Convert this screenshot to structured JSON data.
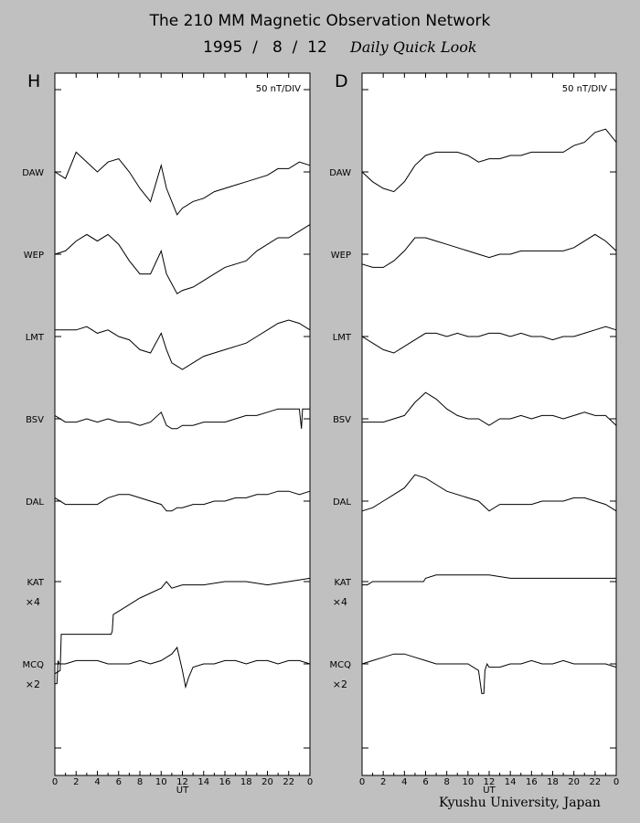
{
  "header": {
    "title": "The 210 MM Magnetic Observation Network",
    "date": "1995  /   8  /  12",
    "subtitle": "Daily Quick Look"
  },
  "footer": {
    "credit": "Kyushu University, Japan"
  },
  "chart_data": [
    {
      "type": "line",
      "panel_label": "H",
      "scale_label": "50 nT/DIV",
      "xlabel": "UT",
      "x_ticks": [
        "0",
        "2",
        "4",
        "6",
        "8",
        "10",
        "12",
        "14",
        "16",
        "18",
        "20",
        "22",
        "0"
      ],
      "xlim": [
        0,
        24
      ],
      "stations": [
        {
          "name": "DAW",
          "multiplier": "",
          "x": [
            0,
            1,
            2,
            3,
            4,
            5,
            6,
            7,
            8,
            9,
            10,
            10.5,
            11,
            11.5,
            12,
            13,
            14,
            15,
            16,
            17,
            18,
            19,
            20,
            21,
            22,
            23,
            24
          ],
          "values": [
            0,
            -0.2,
            0.6,
            0.3,
            0,
            0.3,
            0.4,
            0,
            -0.5,
            -0.9,
            0.2,
            -0.5,
            -0.9,
            -1.3,
            -1.1,
            -0.9,
            -0.8,
            -0.6,
            -0.5,
            -0.4,
            -0.3,
            -0.2,
            -0.1,
            0.1,
            0.1,
            0.3,
            0.2
          ]
        },
        {
          "name": "WEP",
          "multiplier": "",
          "x": [
            0,
            1,
            2,
            3,
            4,
            5,
            6,
            7,
            8,
            9,
            10,
            10.5,
            11,
            11.5,
            12,
            13,
            14,
            15,
            16,
            17,
            18,
            19,
            20,
            21,
            22,
            23,
            24
          ],
          "values": [
            0,
            0.1,
            0.4,
            0.6,
            0.4,
            0.6,
            0.3,
            -0.2,
            -0.6,
            -0.6,
            0.1,
            -0.6,
            -0.9,
            -1.2,
            -1.1,
            -1.0,
            -0.8,
            -0.6,
            -0.4,
            -0.3,
            -0.2,
            0.1,
            0.3,
            0.5,
            0.5,
            0.7,
            0.9
          ]
        },
        {
          "name": "LMT",
          "multiplier": "",
          "x": [
            0,
            1,
            2,
            3,
            4,
            5,
            6,
            7,
            8,
            9,
            10,
            10.5,
            11,
            11.5,
            12,
            13,
            14,
            15,
            16,
            17,
            18,
            19,
            20,
            21,
            22,
            23,
            24
          ],
          "values": [
            0.2,
            0.2,
            0.2,
            0.3,
            0.1,
            0.2,
            0,
            -0.1,
            -0.4,
            -0.5,
            0.1,
            -0.4,
            -0.8,
            -0.9,
            -1.0,
            -0.8,
            -0.6,
            -0.5,
            -0.4,
            -0.3,
            -0.2,
            0,
            0.2,
            0.4,
            0.5,
            0.4,
            0.2
          ]
        },
        {
          "name": "BSV",
          "multiplier": "",
          "x": [
            0,
            1,
            2,
            3,
            4,
            5,
            6,
            7,
            8,
            9,
            10,
            10.5,
            11,
            11.5,
            12,
            13,
            14,
            15,
            16,
            17,
            18,
            19,
            20,
            21,
            22,
            23,
            23.2,
            23.3,
            24
          ],
          "values": [
            0.1,
            -0.1,
            -0.1,
            0,
            -0.1,
            0,
            -0.1,
            -0.1,
            -0.2,
            -0.1,
            0.2,
            -0.2,
            -0.3,
            -0.3,
            -0.2,
            -0.2,
            -0.1,
            -0.1,
            -0.1,
            0,
            0.1,
            0.1,
            0.2,
            0.3,
            0.3,
            0.3,
            -0.3,
            0.3,
            0.3
          ]
        },
        {
          "name": "DAL",
          "multiplier": "",
          "x": [
            0,
            1,
            2,
            3,
            4,
            5,
            6,
            7,
            8,
            9,
            10,
            10.5,
            11,
            11.5,
            12,
            13,
            14,
            15,
            16,
            17,
            18,
            19,
            20,
            21,
            22,
            23,
            24
          ],
          "values": [
            0.1,
            -0.1,
            -0.1,
            -0.1,
            -0.1,
            0.1,
            0.2,
            0.2,
            0.1,
            0,
            -0.1,
            -0.3,
            -0.3,
            -0.2,
            -0.2,
            -0.1,
            -0.1,
            0,
            0,
            0.1,
            0.1,
            0.2,
            0.2,
            0.3,
            0.3,
            0.2,
            0.3
          ]
        },
        {
          "name": "KAT",
          "multiplier": "×4",
          "x": [
            0,
            0.5,
            0.6,
            0.7,
            5.3,
            5.4,
            5.5,
            6,
            8,
            10,
            10.5,
            11,
            12,
            14,
            16,
            18,
            20,
            22,
            24
          ],
          "values": [
            -2.8,
            -2.7,
            -1.6,
            -1.6,
            -1.6,
            -1.5,
            -1.0,
            -0.9,
            -0.5,
            -0.2,
            0,
            -0.2,
            -0.1,
            -0.1,
            0,
            0,
            -0.1,
            0,
            0.1
          ]
        },
        {
          "name": "MCQ",
          "multiplier": "×2",
          "x": [
            0,
            0.2,
            0.3,
            0.4,
            0.5,
            1,
            2,
            3,
            4,
            5,
            6,
            7,
            8,
            9,
            10,
            10.5,
            11,
            11.5,
            12,
            12.3,
            12.6,
            13,
            14,
            15,
            16,
            17,
            18,
            19,
            20,
            21,
            22,
            23,
            24
          ],
          "values": [
            -0.6,
            -0.6,
            0.1,
            0,
            0,
            0,
            0.1,
            0.1,
            0.1,
            0,
            0,
            0,
            0.1,
            0,
            0.1,
            0.2,
            0.3,
            0.5,
            -0.2,
            -0.7,
            -0.4,
            -0.1,
            0,
            0,
            0.1,
            0.1,
            0,
            0.1,
            0.1,
            0,
            0.1,
            0.1,
            0
          ]
        }
      ]
    },
    {
      "type": "line",
      "panel_label": "D",
      "scale_label": "50 nT/DIV",
      "xlabel": "UT",
      "x_ticks": [
        "0",
        "2",
        "4",
        "6",
        "8",
        "10",
        "12",
        "14",
        "16",
        "18",
        "20",
        "22",
        "0"
      ],
      "xlim": [
        0,
        24
      ],
      "stations": [
        {
          "name": "DAW",
          "multiplier": "",
          "x": [
            0,
            1,
            2,
            3,
            4,
            5,
            6,
            7,
            8,
            9,
            10,
            11,
            12,
            13,
            14,
            15,
            16,
            17,
            18,
            19,
            20,
            21,
            22,
            23,
            24
          ],
          "values": [
            0,
            -0.3,
            -0.5,
            -0.6,
            -0.3,
            0.2,
            0.5,
            0.6,
            0.6,
            0.6,
            0.5,
            0.3,
            0.4,
            0.4,
            0.5,
            0.5,
            0.6,
            0.6,
            0.6,
            0.6,
            0.8,
            0.9,
            1.2,
            1.3,
            0.9
          ]
        },
        {
          "name": "WEP",
          "multiplier": "",
          "x": [
            0,
            1,
            2,
            3,
            4,
            5,
            6,
            7,
            8,
            9,
            10,
            11,
            12,
            13,
            14,
            15,
            16,
            17,
            18,
            19,
            20,
            21,
            22,
            23,
            24
          ],
          "values": [
            -0.3,
            -0.4,
            -0.4,
            -0.2,
            0.1,
            0.5,
            0.5,
            0.4,
            0.3,
            0.2,
            0.1,
            0,
            -0.1,
            0,
            0,
            0.1,
            0.1,
            0.1,
            0.1,
            0.1,
            0.2,
            0.4,
            0.6,
            0.4,
            0.1
          ]
        },
        {
          "name": "LMT",
          "multiplier": "",
          "x": [
            0,
            1,
            2,
            3,
            4,
            5,
            6,
            7,
            8,
            9,
            10,
            11,
            12,
            13,
            14,
            15,
            16,
            17,
            18,
            19,
            20,
            21,
            22,
            23,
            24
          ],
          "values": [
            0,
            -0.2,
            -0.4,
            -0.5,
            -0.3,
            -0.1,
            0.1,
            0.1,
            0,
            0.1,
            0,
            0,
            0.1,
            0.1,
            0,
            0.1,
            0,
            0,
            -0.1,
            0,
            0,
            0.1,
            0.2,
            0.3,
            0.2
          ]
        },
        {
          "name": "BSV",
          "multiplier": "",
          "x": [
            0,
            1,
            2,
            3,
            4,
            5,
            6,
            7,
            8,
            9,
            10,
            11,
            12,
            13,
            14,
            15,
            16,
            17,
            18,
            19,
            20,
            21,
            22,
            23,
            24
          ],
          "values": [
            -0.1,
            -0.1,
            -0.1,
            0,
            0.1,
            0.5,
            0.8,
            0.6,
            0.3,
            0.1,
            0,
            0,
            -0.2,
            0,
            0,
            0.1,
            0,
            0.1,
            0.1,
            0,
            0.1,
            0.2,
            0.1,
            0.1,
            -0.2
          ]
        },
        {
          "name": "DAL",
          "multiplier": "",
          "x": [
            0,
            1,
            2,
            3,
            4,
            5,
            6,
            7,
            8,
            9,
            10,
            11,
            12,
            13,
            14,
            15,
            16,
            17,
            18,
            19,
            20,
            21,
            22,
            23,
            24
          ],
          "values": [
            -0.3,
            -0.2,
            0,
            0.2,
            0.4,
            0.8,
            0.7,
            0.5,
            0.3,
            0.2,
            0.1,
            0,
            -0.3,
            -0.1,
            -0.1,
            -0.1,
            -0.1,
            0,
            0,
            0,
            0.1,
            0.1,
            0,
            -0.1,
            -0.3
          ]
        },
        {
          "name": "KAT",
          "multiplier": "×4",
          "x": [
            0,
            0.5,
            1,
            2,
            3,
            4,
            5,
            5.8,
            6,
            7,
            8,
            10,
            12,
            14,
            16,
            18,
            20,
            22,
            24
          ],
          "values": [
            -0.1,
            -0.1,
            0,
            0,
            0,
            0,
            0,
            0,
            0.1,
            0.2,
            0.2,
            0.2,
            0.2,
            0.1,
            0.1,
            0.1,
            0.1,
            0.1,
            0.1
          ]
        },
        {
          "name": "MCQ",
          "multiplier": "×2",
          "x": [
            0,
            1,
            2,
            3,
            4,
            5,
            6,
            7,
            8,
            9,
            10,
            11,
            11.3,
            11.5,
            11.6,
            11.8,
            12,
            13,
            14,
            15,
            16,
            17,
            18,
            19,
            20,
            21,
            22,
            23,
            24
          ],
          "values": [
            0,
            0.1,
            0.2,
            0.3,
            0.3,
            0.2,
            0.1,
            0,
            0,
            0,
            0,
            -0.2,
            -0.9,
            -0.9,
            -0.2,
            0,
            -0.1,
            -0.1,
            0,
            0,
            0.1,
            0,
            0,
            0.1,
            0,
            0,
            0,
            0,
            -0.1
          ]
        }
      ]
    }
  ]
}
